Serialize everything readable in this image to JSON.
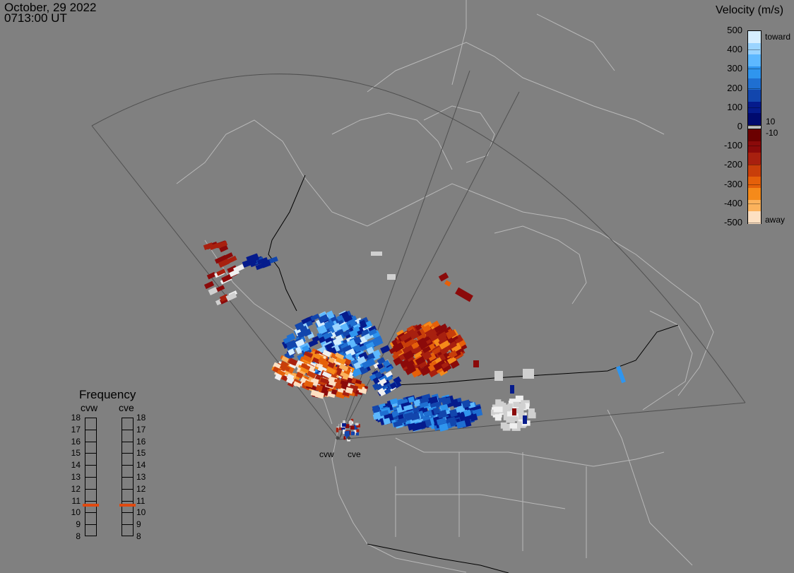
{
  "header": {
    "date": "October, 29 2022",
    "time": "0713:00 UT"
  },
  "colorbar": {
    "title": "Velocity (m/s)",
    "ticks": [
      "500",
      "400",
      "300",
      "200",
      "100",
      "0",
      "-100",
      "-200",
      "-300",
      "-400",
      "-500"
    ],
    "toward_label": "toward",
    "away_label": "away",
    "pos_threshold": "10",
    "neg_threshold": "-10",
    "colors": [
      "#d6eeff",
      "#9bd4ff",
      "#5db8ff",
      "#2f95ee",
      "#1f6fd1",
      "#1246ad",
      "#051b8c",
      "#000a6e",
      "#6b0000",
      "#8b0a0a",
      "#a8200f",
      "#c83e0a",
      "#e5600a",
      "#f58a1a",
      "#fbb25c",
      "#fde0c2"
    ]
  },
  "frequency": {
    "title": "Frequency",
    "radars": [
      "cvw",
      "cve"
    ],
    "levels": [
      "18",
      "17",
      "16",
      "15",
      "14",
      "13",
      "12",
      "11",
      "10",
      "9",
      "8"
    ],
    "current": {
      "cvw": 10.6,
      "cve": 10.6
    },
    "marker_color": "#e04a10"
  },
  "map": {
    "site_labels": [
      "cvw",
      "cve"
    ],
    "coastline_color": "#b8b8b8",
    "fov_color": "#505050"
  }
}
